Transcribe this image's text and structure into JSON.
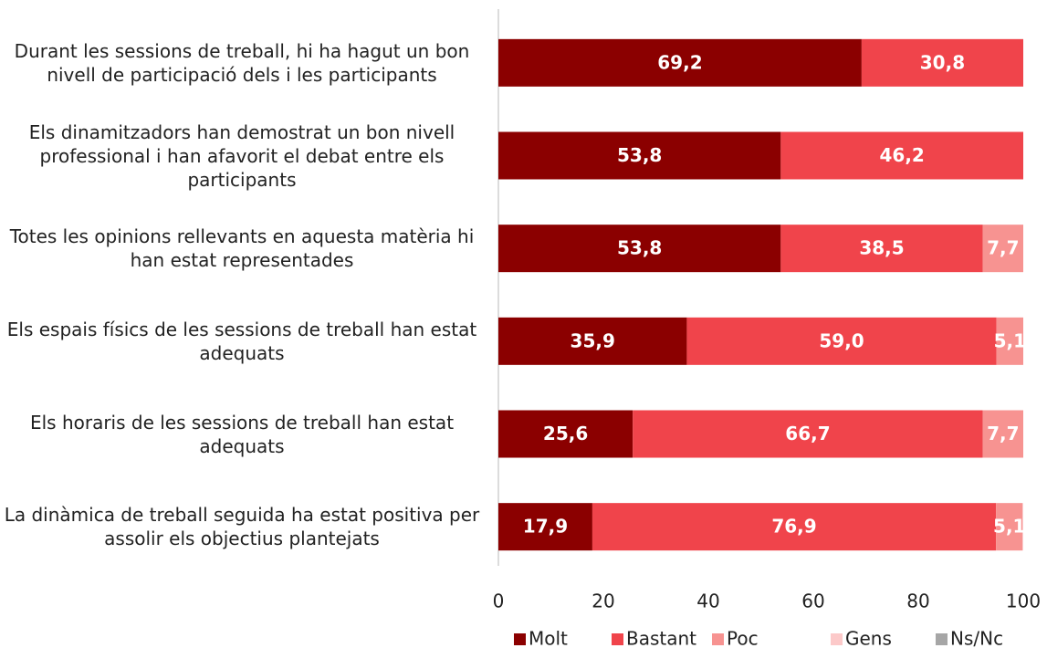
{
  "chart_data": {
    "type": "stacked-barh",
    "categories": [
      "Durant les sessions de treball, hi ha hagut un bon nivell de participació dels i les participants",
      "Els dinamitzadors han demostrat un bon nivell professional i han afavorit el debat entre els participants",
      "Totes les opinions rellevants en aquesta matèria hi han estat representades",
      "Els espais físics de les sessions de treball han estat adequats",
      "Els horaris de les sessions de treball han estat adequats",
      "La dinàmica de treball seguida ha estat positiva per assolir els objectius plantejats"
    ],
    "series": [
      {
        "name": "Molt",
        "color": "#8b0000",
        "values": [
          69.2,
          53.8,
          53.8,
          35.9,
          25.6,
          17.9
        ],
        "value_labels": [
          "69,2",
          "53,8",
          "53,8",
          "35,9",
          "25,6",
          "17,9"
        ]
      },
      {
        "name": "Bastant",
        "color": "#f0444b",
        "values": [
          30.8,
          46.2,
          38.5,
          59.0,
          66.7,
          76.9
        ],
        "value_labels": [
          "30,8",
          "46,2",
          "38,5",
          "59,0",
          "66,7",
          "76,9"
        ]
      },
      {
        "name": "Poc",
        "color": "#f79391",
        "values": [
          0,
          0,
          7.7,
          5.1,
          7.7,
          5.1
        ],
        "value_labels": [
          null,
          null,
          "7,7",
          "5,1",
          "7,7",
          "5,1"
        ]
      },
      {
        "name": "Gens",
        "color": "#fcc9c9",
        "values": [
          0,
          0,
          0,
          0,
          0,
          0
        ],
        "value_labels": [
          null,
          null,
          null,
          null,
          null,
          null
        ]
      },
      {
        "name": "Ns/Nc",
        "color": "#a6a6a6",
        "values": [
          0,
          0,
          0,
          0,
          0,
          0
        ],
        "value_labels": [
          null,
          null,
          null,
          null,
          null,
          null
        ]
      }
    ],
    "xlim": [
      0,
      100
    ],
    "xticks": [
      0,
      20,
      40,
      60,
      80,
      100
    ]
  }
}
